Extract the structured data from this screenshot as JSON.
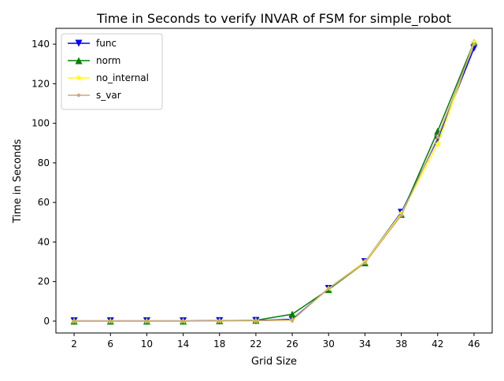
{
  "chart_data": {
    "type": "line",
    "title": "Time in Seconds to verify INVAR of FSM for simple_robot",
    "xlabel": "Grid Size",
    "ylabel": "Time in Seconds",
    "categories": [
      "2",
      "6",
      "10",
      "14",
      "18",
      "22",
      "26",
      "30",
      "34",
      "38",
      "42",
      "46"
    ],
    "x": [
      2,
      6,
      10,
      14,
      18,
      22,
      26,
      30,
      34,
      38,
      42,
      46
    ],
    "ylim": [
      -6,
      148
    ],
    "yticks": [
      0,
      20,
      40,
      60,
      80,
      100,
      120,
      140
    ],
    "ytick_labels": [
      "0",
      "20",
      "40",
      "60",
      "80",
      "100",
      "120",
      "140"
    ],
    "grid": false,
    "legend_position": "upper-left",
    "series": [
      {
        "name": "func",
        "color": "#0000ff",
        "marker": "triangle-down",
        "values": [
          0.1,
          0.1,
          0.1,
          0.1,
          0.2,
          0.3,
          0.9,
          16.5,
          30.0,
          55.0,
          92.0,
          138.0
        ]
      },
      {
        "name": "norm",
        "color": "#008000",
        "marker": "triangle-up",
        "values": [
          0.0,
          0.0,
          0.0,
          0.0,
          0.2,
          0.4,
          3.5,
          16.0,
          29.5,
          54.0,
          96.0,
          141.0
        ]
      },
      {
        "name": "no_internal",
        "color": "#ffff00",
        "marker": "star",
        "values": [
          0.0,
          0.0,
          0.0,
          0.0,
          0.1,
          0.2,
          0.5,
          16.5,
          30.0,
          54.5,
          89.5,
          141.0
        ]
      },
      {
        "name": "s_var",
        "color": "#d2a679",
        "marker": "dot",
        "values": [
          0.0,
          0.0,
          0.0,
          0.0,
          0.1,
          0.2,
          0.5,
          16.5,
          29.5,
          53.5,
          93.0,
          140.0
        ]
      }
    ]
  }
}
